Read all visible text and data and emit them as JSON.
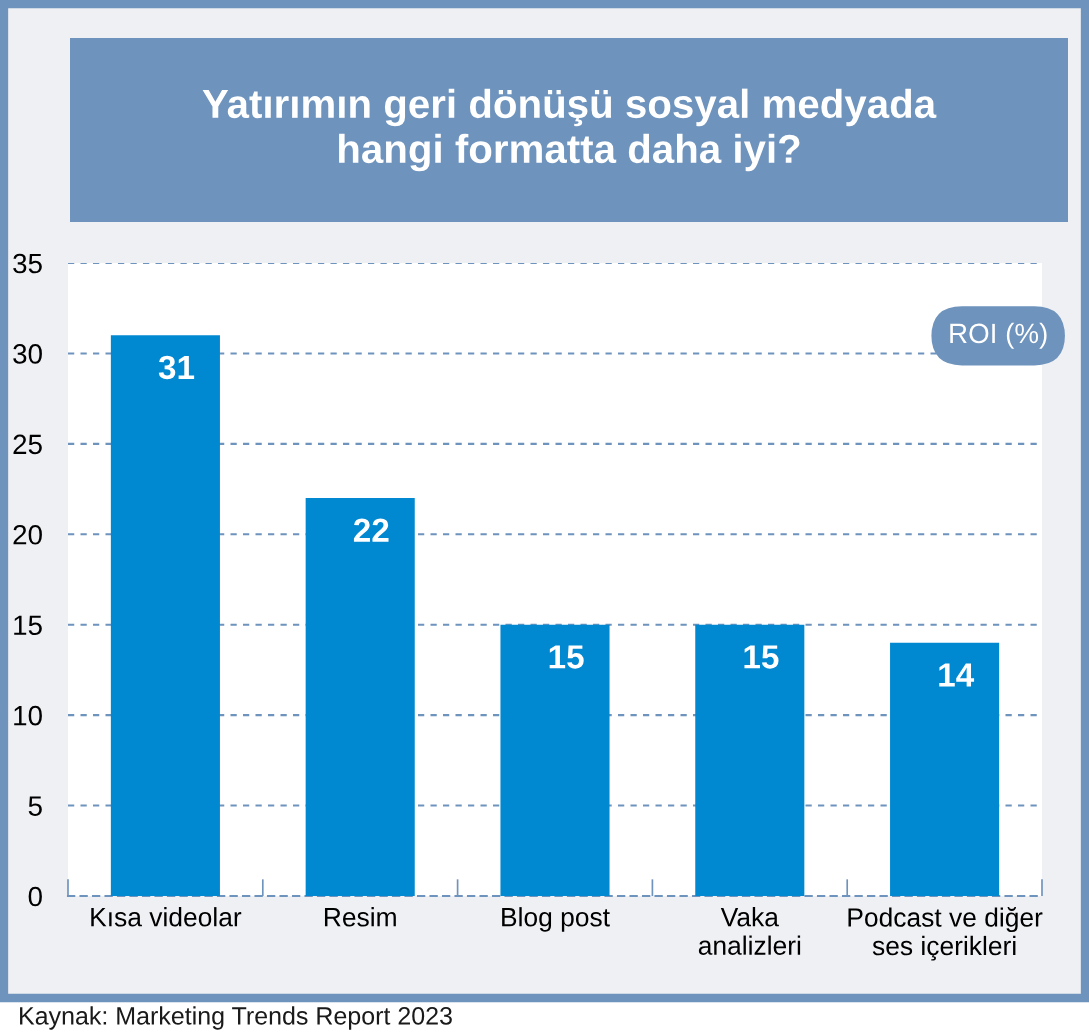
{
  "chart_data": {
    "type": "bar",
    "title": "Yatırımın geri dönüşü sosyal medyada\nhangi formatta daha iyi?",
    "ylabel": "ROI (%)",
    "categories": [
      "Kısa videolar",
      "Resim",
      "Blog post",
      "Vaka\nanalizleri",
      "Podcast ve diğer\nses içerikleri"
    ],
    "values": [
      31,
      22,
      15,
      15,
      14
    ],
    "color": "#0088d0",
    "ylim": [
      0,
      35
    ],
    "yticks": [
      0,
      5,
      10,
      15,
      20,
      25,
      30,
      35
    ],
    "grid": "y",
    "data_labels": true,
    "annotations": [
      "Kaynak: Marketing Trends Report 2023"
    ]
  }
}
